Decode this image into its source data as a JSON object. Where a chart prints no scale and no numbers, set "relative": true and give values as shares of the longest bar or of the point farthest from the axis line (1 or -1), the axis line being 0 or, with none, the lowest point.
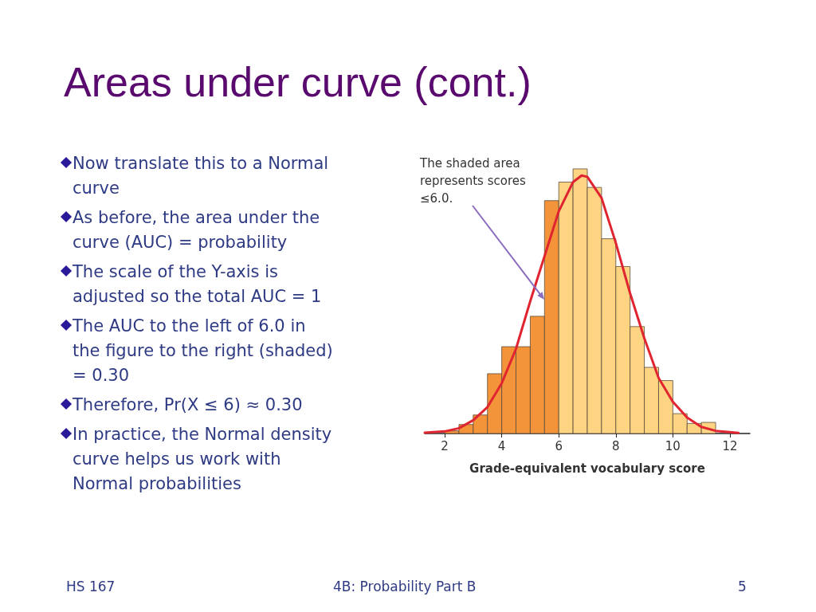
{
  "chart_data": {
    "type": "histogram",
    "title": "Areas under curve (cont.)",
    "xlabel": "Grade-equivalent vocabulary score",
    "relative": true,
    "xlim": [
      1.3,
      12.7
    ],
    "xticks": [
      2,
      4,
      6,
      8,
      10,
      12
    ],
    "grid": false,
    "series": [
      {
        "bins": [
          2,
          2.5,
          3,
          3.5,
          4,
          4.5,
          5,
          5.5,
          6,
          6.5,
          7,
          7.5,
          8,
          8.5,
          9,
          9.5,
          10,
          10.5,
          11,
          11.5
        ],
        "values": [
          0.01,
          0.034,
          0.07,
          0.226,
          0.328,
          0.328,
          0.443,
          0.88,
          0.95,
          1,
          0.93,
          0.736,
          0.631,
          0.404,
          0.25,
          0.2,
          0.075,
          0.038,
          0.042
        ],
        "colors": [
          "#f4943a",
          "#f4943a",
          "#f4943a",
          "#f4943a",
          "#f4943a",
          "#f4943a",
          "#f4943a",
          "#f4943a",
          "#fdd582",
          "#fdd582",
          "#fdd582",
          "#fdd582",
          "#fdd582",
          "#fdd582",
          "#fdd582",
          "#fdd582",
          "#fdd582",
          "#fdd582",
          "#fdd582"
        ]
      },
      {
        "type": "line",
        "color": "#e02430",
        "marker": "none",
        "line_style": "solid",
        "x": [
          1.3,
          2,
          2.5,
          3,
          3.5,
          4,
          4.5,
          5,
          5.5,
          6,
          6.5,
          6.8,
          7,
          7.5,
          8,
          8.5,
          9,
          9.5,
          10,
          10.5,
          11,
          11.5,
          12.3
        ],
        "values": [
          0.003,
          0.008,
          0.02,
          0.05,
          0.1,
          0.19,
          0.32,
          0.5,
          0.67,
          0.84,
          0.95,
          0.975,
          0.97,
          0.89,
          0.72,
          0.53,
          0.36,
          0.21,
          0.12,
          0.06,
          0.025,
          0.01,
          0.002
        ]
      }
    ],
    "annotations": [
      "The shaded area represents scores ≤6.0.",
      "Now translate this to a Normal curve",
      "As before, the area under the curve (AUC) = probability",
      "The scale of the Y-axis is adjusted so the total AUC = 1",
      " The AUC to the left of 6.0 in the figure to the right (shaded) = 0.30",
      "Therefore, Pr(X ≤ 6) ≈ 0.30",
      "In practice, the Normal density curve helps us work with Normal probabilities",
      "HS 167",
      "4B: Probability Part B",
      "5"
    ]
  }
}
